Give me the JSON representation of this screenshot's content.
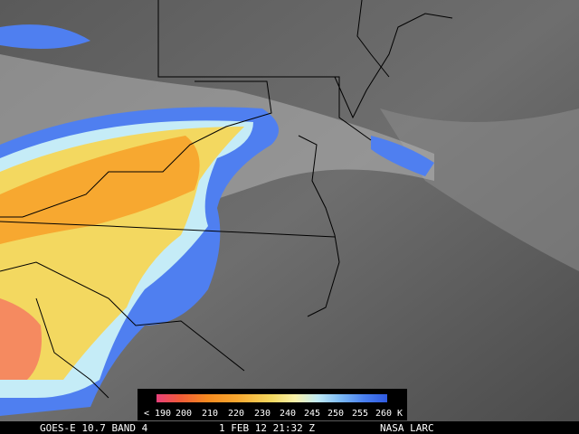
{
  "legend": {
    "labels": [
      "< 190",
      "200",
      "210",
      "220",
      "230",
      "240",
      "245",
      "250",
      "255",
      "260 K"
    ]
  },
  "footer": {
    "satellite": "GOES-E 10.7 BAND 4",
    "time": "1 FEB 12 21:32 Z",
    "source": "NASA LARC"
  }
}
